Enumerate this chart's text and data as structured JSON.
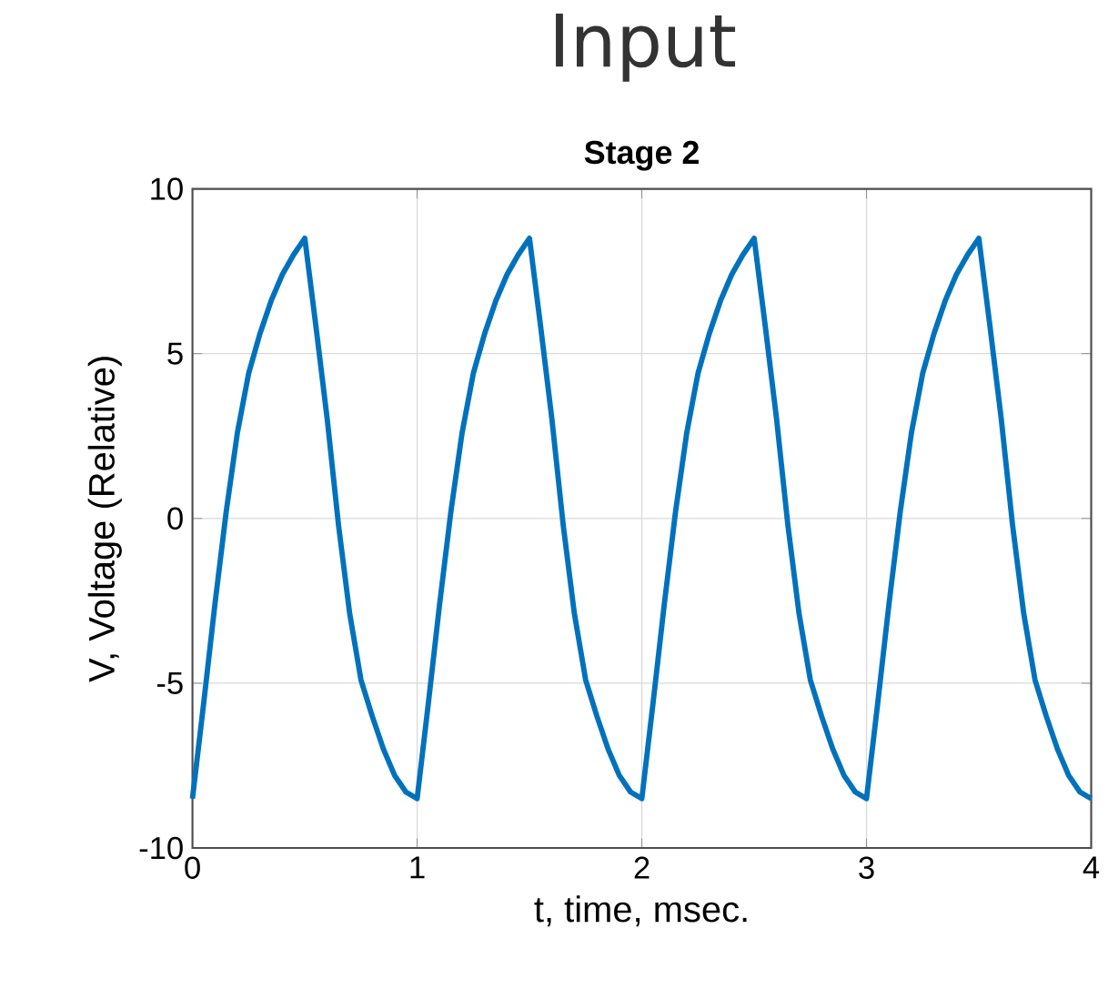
{
  "chart_data": {
    "type": "line",
    "title": "Input",
    "subtitle": "Stage 2",
    "xlabel": "t, time, msec.",
    "ylabel": "V, Voltage (Relative)",
    "xlim": [
      0,
      4
    ],
    "ylim": [
      -10,
      10
    ],
    "xticks": [
      0,
      1,
      2,
      3,
      4
    ],
    "yticks": [
      -10,
      -5,
      0,
      5,
      10
    ],
    "grid": true,
    "legend": false,
    "marker": "none",
    "line_style": "solid",
    "series": [
      {
        "color": "#0072bd",
        "x": [
          0,
          0.05,
          0.1,
          0.15,
          0.2,
          0.25,
          0.3,
          0.35,
          0.4,
          0.45,
          0.5,
          0.55,
          0.6,
          0.65,
          0.7,
          0.75,
          0.8,
          0.85,
          0.9,
          0.95,
          1,
          1.05,
          1.1,
          1.15,
          1.2,
          1.25,
          1.3,
          1.35,
          1.4,
          1.45,
          1.5,
          1.55,
          1.6,
          1.65,
          1.7,
          1.75,
          1.8,
          1.85,
          1.9,
          1.95,
          2,
          2.05,
          2.1,
          2.15,
          2.2,
          2.25,
          2.3,
          2.35,
          2.4,
          2.45,
          2.5,
          2.55,
          2.6,
          2.65,
          2.7,
          2.75,
          2.8,
          2.85,
          2.9,
          2.95,
          3,
          3.05,
          3.1,
          3.15,
          3.2,
          3.25,
          3.3,
          3.35,
          3.4,
          3.45,
          3.5,
          3.55,
          3.6,
          3.65,
          3.7,
          3.75,
          3.8,
          3.85,
          3.9,
          3.95,
          4
        ],
        "values": [
          -8.5,
          -5.6,
          -2.6,
          0.2,
          2.6,
          4.4,
          5.6,
          6.6,
          7.4,
          8.0,
          8.5,
          5.8,
          3.0,
          -0.2,
          -2.9,
          -4.9,
          -6.0,
          -7.0,
          -7.8,
          -8.3,
          -8.5,
          -5.6,
          -2.6,
          0.2,
          2.6,
          4.4,
          5.6,
          6.6,
          7.4,
          8.0,
          8.5,
          5.8,
          3.0,
          -0.2,
          -2.9,
          -4.9,
          -6.0,
          -7.0,
          -7.8,
          -8.3,
          -8.5,
          -5.6,
          -2.6,
          0.2,
          2.6,
          4.4,
          5.6,
          6.6,
          7.4,
          8.0,
          8.5,
          5.8,
          3.0,
          -0.2,
          -2.9,
          -4.9,
          -6.0,
          -7.0,
          -7.8,
          -8.3,
          -8.5,
          -5.6,
          -2.6,
          0.2,
          2.6,
          4.4,
          5.6,
          6.6,
          7.4,
          8.0,
          8.5,
          5.8,
          3.0,
          -0.2,
          -2.9,
          -4.9,
          -6.0,
          -7.0,
          -7.8,
          -8.3,
          -8.5
        ]
      }
    ]
  }
}
